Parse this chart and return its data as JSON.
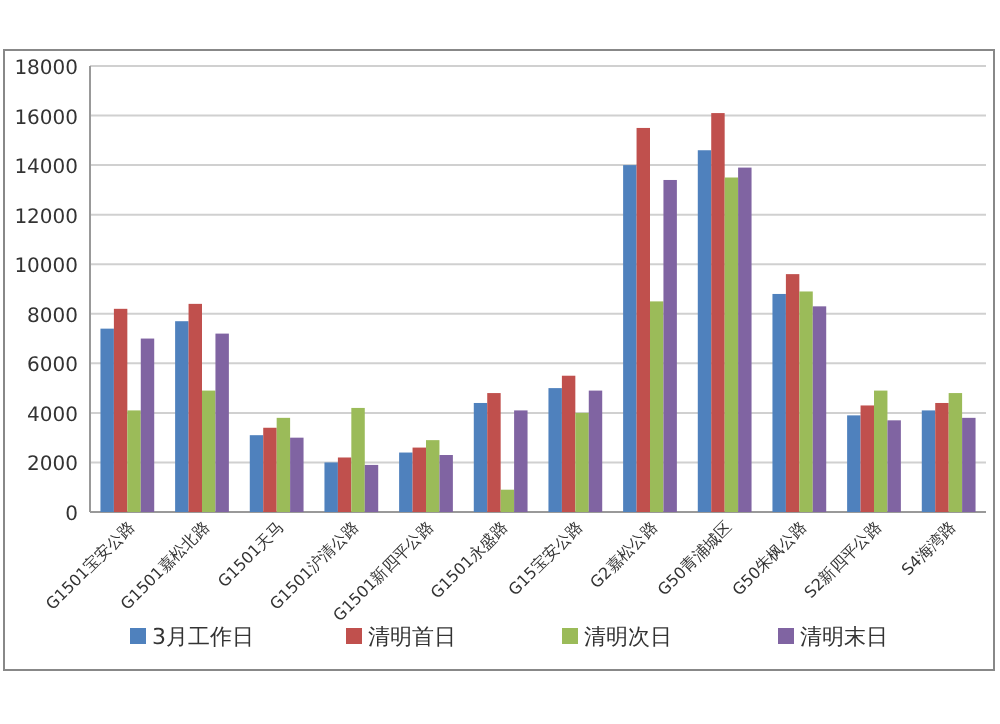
{
  "chart_data": {
    "type": "bar",
    "categories": [
      "G1501宝安公路",
      "G1501嘉松北路",
      "G1501天马",
      "G1501沪清公路",
      "G1501新四平公路",
      "G1501永盛路",
      "G15宝安公路",
      "G2嘉松公路",
      "G50青浦城区",
      "G50朱枫公路",
      "S2新四平公路",
      "S4海湾路"
    ],
    "series": [
      {
        "name": "3月工作日",
        "color": "#4f81bd",
        "values": [
          7400,
          7700,
          3100,
          2000,
          2400,
          4400,
          5000,
          14000,
          14600,
          8800,
          3900,
          4100
        ]
      },
      {
        "name": "清明首日",
        "color": "#c0504d",
        "values": [
          8200,
          8400,
          3400,
          2200,
          2600,
          4800,
          5500,
          15500,
          16100,
          9600,
          4300,
          4400
        ]
      },
      {
        "name": "清明次日",
        "color": "#9bbb59",
        "values": [
          4100,
          4900,
          3800,
          4200,
          2900,
          900,
          4000,
          8500,
          13500,
          8900,
          4900,
          4800
        ]
      },
      {
        "name": "清明末日",
        "color": "#8064a2",
        "values": [
          7000,
          7200,
          3000,
          1900,
          2300,
          4100,
          4900,
          13400,
          13900,
          8300,
          3700,
          3800
        ]
      }
    ],
    "ylim": [
      0,
      18000
    ],
    "yticks": [
      0,
      2000,
      4000,
      6000,
      8000,
      10000,
      12000,
      14000,
      16000,
      18000
    ],
    "grid": "y",
    "legend": "bottom"
  }
}
